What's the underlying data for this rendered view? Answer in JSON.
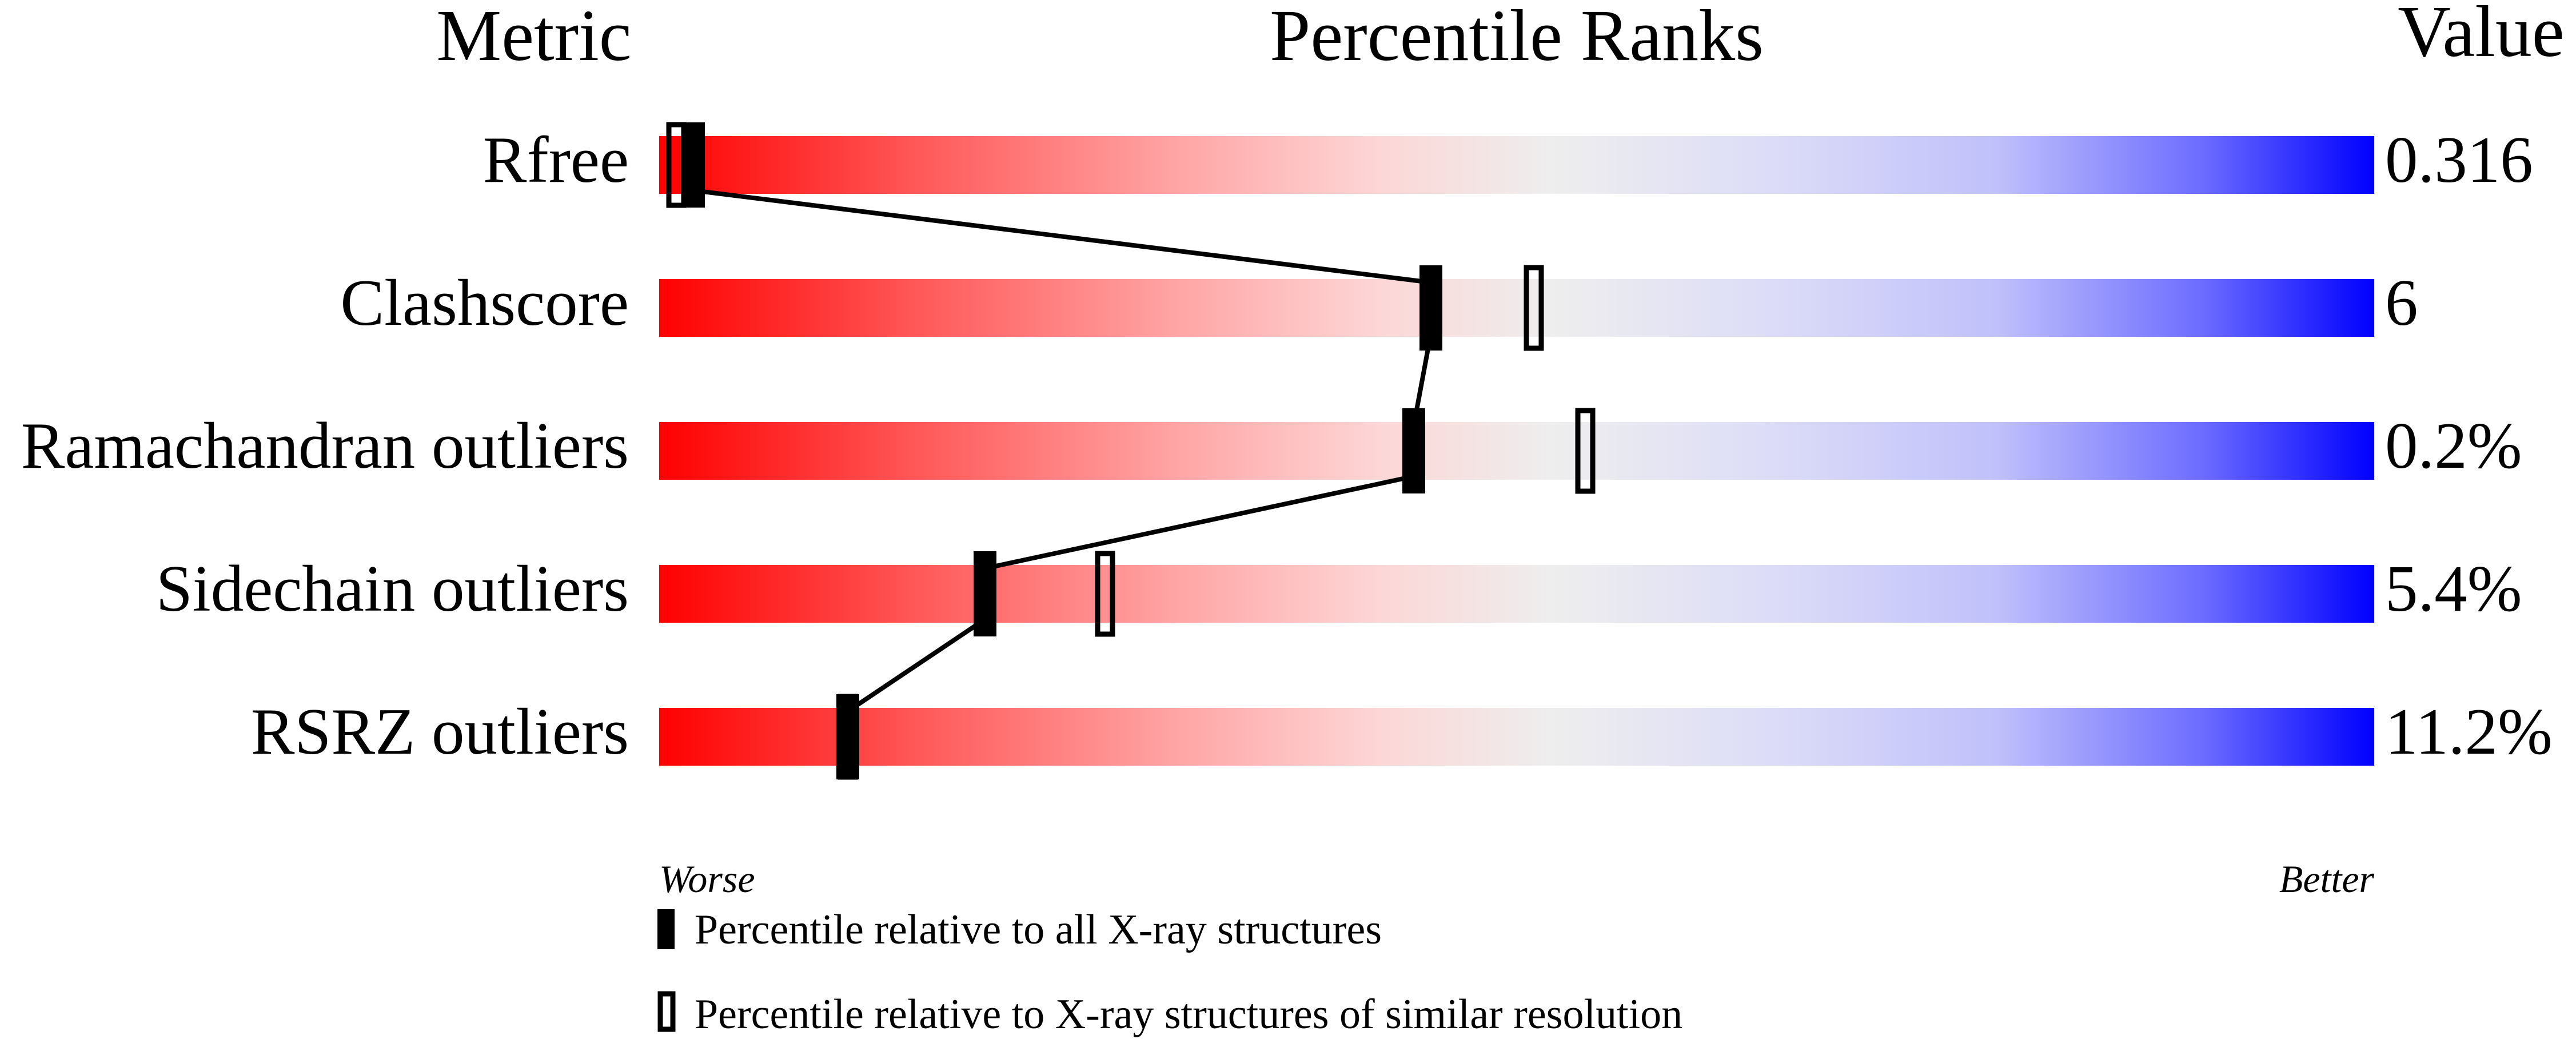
{
  "chart_data": {
    "type": "percentile-ranks",
    "headers": {
      "metric": "Metric",
      "ranks": "Percentile Ranks",
      "value": "Value"
    },
    "xlim": [
      0,
      100
    ],
    "axis_labels": {
      "left": "Worse",
      "right": "Better"
    },
    "gradient_colors": [
      "#ff0000",
      "#efefef",
      "#0000ff"
    ],
    "rows": [
      {
        "metric": "Rfree",
        "value": "0.316",
        "percentile_all": 2,
        "percentile_similar": 1
      },
      {
        "metric": "Clashscore",
        "value": "6",
        "percentile_all": 45,
        "percentile_similar": 51
      },
      {
        "metric": "Ramachandran outliers",
        "value": "0.2%",
        "percentile_all": 44,
        "percentile_similar": 54
      },
      {
        "metric": "Sidechain outliers",
        "value": "5.4%",
        "percentile_all": 19,
        "percentile_similar": 26
      },
      {
        "metric": "RSRZ outliers",
        "value": "11.2%",
        "percentile_all": 11,
        "percentile_similar": 11
      }
    ],
    "legend": [
      {
        "marker": "filled",
        "label": "Percentile relative to all X-ray structures"
      },
      {
        "marker": "hollow",
        "label": "Percentile relative to X-ray structures of similar resolution"
      }
    ]
  }
}
